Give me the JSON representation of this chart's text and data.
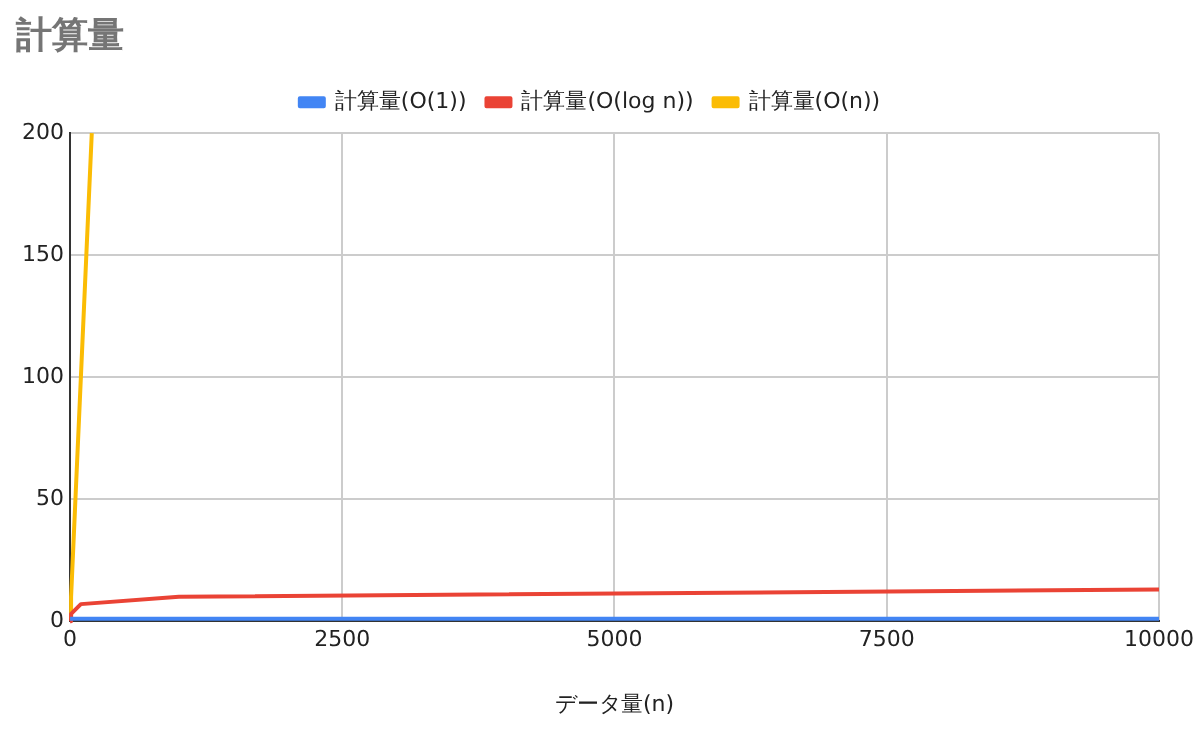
{
  "chart_data": {
    "type": "line",
    "title": "計算量",
    "xlabel": "データ量(n)",
    "xlim": [
      0,
      10000
    ],
    "xticks": [
      0,
      2500,
      5000,
      7500,
      10000
    ],
    "ylim": [
      0,
      200
    ],
    "yticks": [
      0,
      50,
      100,
      150,
      200
    ],
    "grid": true,
    "legend": "top",
    "marker": "none",
    "series": [
      {
        "name": "計算量(O(1))",
        "color": "#4285f4",
        "x": [
          1,
          10000
        ],
        "values": [
          1,
          1
        ]
      },
      {
        "name": "計算量(O(log n))",
        "color": "#ea4335",
        "x": [
          1,
          10,
          100,
          1000,
          10000
        ],
        "values": [
          0,
          3,
          7,
          10,
          13
        ]
      },
      {
        "name": "計算量(O(n))",
        "color": "#fbbc04",
        "x": [
          1,
          10,
          100,
          200
        ],
        "values": [
          1,
          10,
          100,
          200
        ]
      }
    ]
  }
}
